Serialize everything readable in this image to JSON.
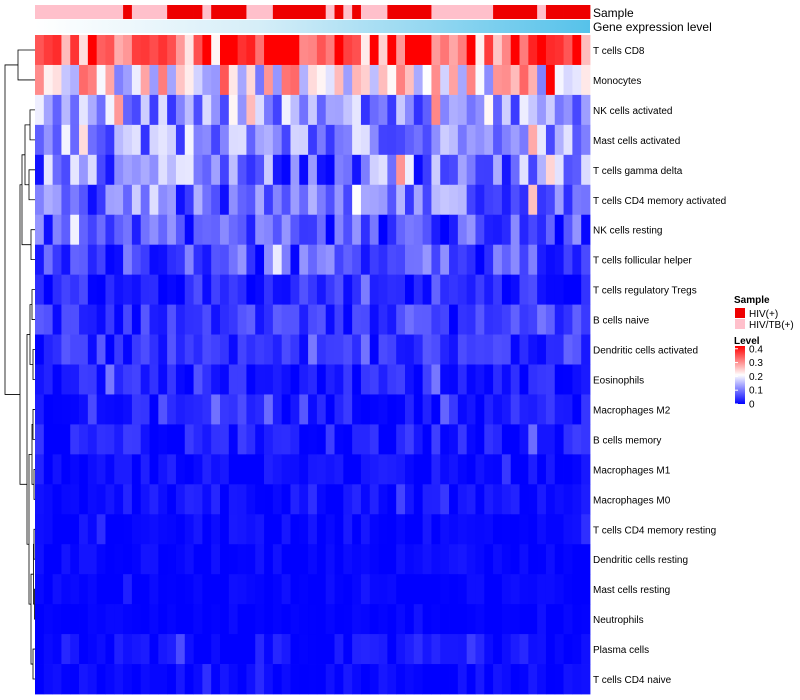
{
  "chart_data": {
    "type": "heatmap",
    "title": "",
    "tracks": [
      {
        "name": "Sample",
        "legend_title": "Sample"
      },
      {
        "name": "Gene expression level"
      }
    ],
    "sample_groups": [
      {
        "label": "HIV(+)",
        "color": "#ee0000"
      },
      {
        "label": "HIV/TB(+)",
        "color": "#ffc0cb"
      }
    ],
    "sample_annotation": "PPPPPPPPPPHPPPPHHHHPHHHHPPPHHHHHHPHPHPPPHHHHHPPPPPPPHHHHHPHHHHH",
    "expression_gradient": [
      "#ffffff",
      "#d6eef8",
      "#56c2ea"
    ],
    "rows": [
      "T cells CD8",
      "Monocytes",
      "NK cells activated",
      "Mast cells activated",
      "T cells gamma delta",
      "T cells CD4 memory activated",
      "NK cells resting",
      "T cells follicular helper",
      "T cells regulatory  Tregs",
      "B cells naive",
      "Dendritic cells activated",
      "Eosinophils",
      "Macrophages M2",
      "B cells memory",
      "Macrophages M1",
      "Macrophages M0",
      "T cells CD4 memory resting",
      "Dendritic cells resting",
      "Mast cells resting",
      "Neutrophils",
      "Plasma cells",
      "T cells CD4 naive"
    ],
    "row_means": [
      0.34,
      0.22,
      0.12,
      0.12,
      0.1,
      0.09,
      0.06,
      0.06,
      0.03,
      0.04,
      0.035,
      0.025,
      0.02,
      0.02,
      0.01,
      0.01,
      0.006,
      0.004,
      0.004,
      0.002,
      0.01,
      0.005
    ],
    "row_spreads": [
      0.09,
      0.08,
      0.05,
      0.05,
      0.06,
      0.05,
      0.04,
      0.04,
      0.025,
      0.025,
      0.025,
      0.02,
      0.02,
      0.02,
      0.012,
      0.014,
      0.01,
      0.008,
      0.006,
      0.004,
      0.015,
      0.01
    ],
    "n_samples": 63,
    "legend": {
      "title": "Level",
      "ticks": [
        {
          "label": "0.4",
          "value": 0.4
        },
        {
          "label": "0.3",
          "value": 0.3
        },
        {
          "label": "0.2",
          "value": 0.2
        },
        {
          "label": "0.1",
          "value": 0.1
        },
        {
          "label": "0",
          "value": 0
        }
      ],
      "range": [
        0,
        0.42
      ],
      "colors": [
        "#0000ff",
        "#ffffff",
        "#ff0000"
      ]
    },
    "dendrogram": "row clustering tree"
  }
}
